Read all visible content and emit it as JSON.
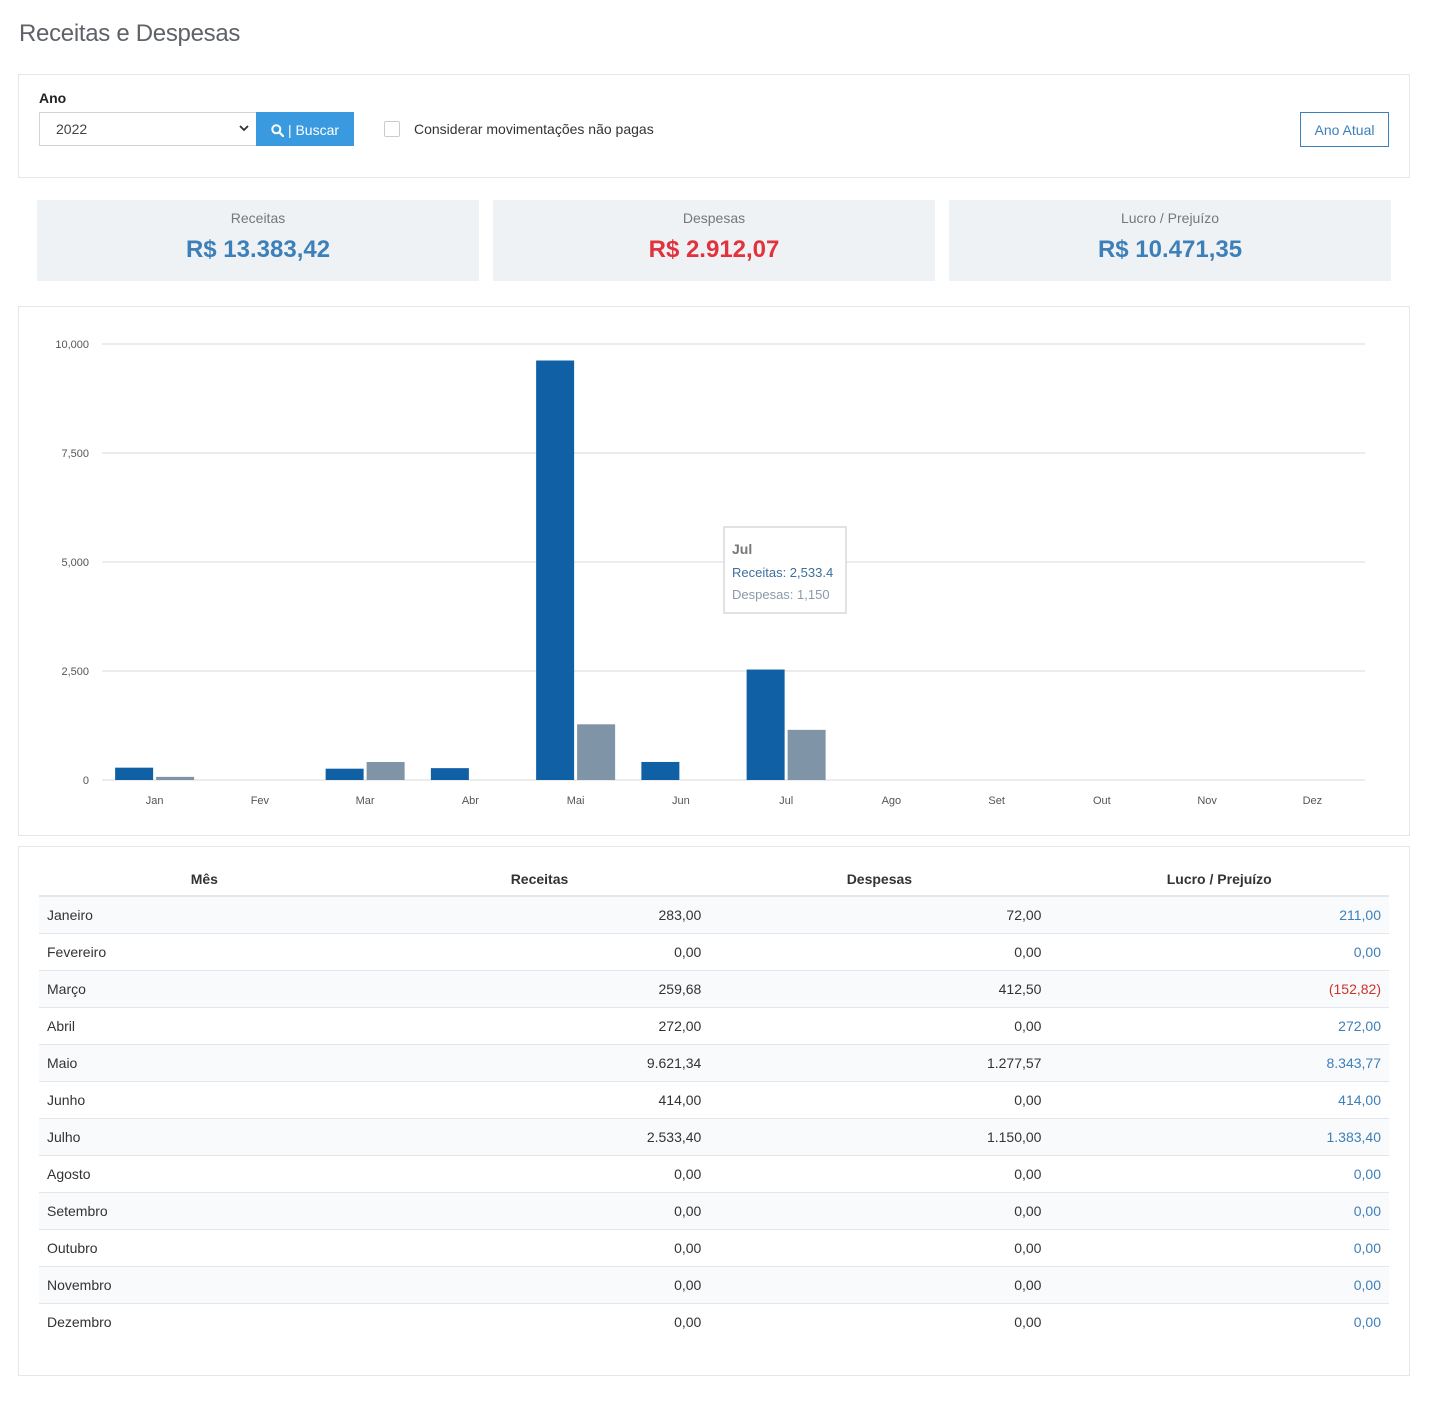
{
  "page": {
    "title": "Receitas e Despesas"
  },
  "filter": {
    "year_label": "Ano",
    "year_value": "2022",
    "search_button": "| Buscar",
    "checkbox_label": "Considerar movimentações não pagas",
    "current_year_button": "Ano Atual"
  },
  "summary": [
    {
      "label": "Receitas",
      "value": "R$ 13.383,42",
      "color": "#3d7fb8"
    },
    {
      "label": "Despesas",
      "value": "R$ 2.912,07",
      "color": "#e2323b"
    },
    {
      "label": "Lucro / Prejuízo",
      "value": "R$ 10.471,35",
      "color": "#3d7fb8"
    }
  ],
  "chart_data": {
    "type": "bar",
    "categories": [
      "Jan",
      "Fev",
      "Mar",
      "Abr",
      "Mai",
      "Jun",
      "Jul",
      "Ago",
      "Set",
      "Out",
      "Nov",
      "Dez"
    ],
    "series": [
      {
        "name": "Receitas",
        "color": "#1060a6",
        "values": [
          283,
          0,
          259.68,
          272,
          9621.34,
          414,
          2533.4,
          0,
          0,
          0,
          0,
          0
        ]
      },
      {
        "name": "Despesas",
        "color": "#8094a8",
        "values": [
          72,
          0,
          412.5,
          0,
          1277.57,
          0,
          1150,
          0,
          0,
          0,
          0,
          0
        ]
      }
    ],
    "ylim": [
      0,
      10000
    ],
    "yticks": [
      0,
      2500,
      5000,
      7500,
      10000
    ],
    "ytick_labels": [
      "0",
      "2,500",
      "5,000",
      "7,500",
      "10,000"
    ],
    "grid": true,
    "tooltip": {
      "title": "Jul",
      "lines": [
        "Receitas: 2,533.4",
        "Despesas: 1,150"
      ]
    }
  },
  "table": {
    "headers": [
      "Mês",
      "Receitas",
      "Despesas",
      "Lucro / Prejuízo"
    ],
    "rows": [
      {
        "month": "Janeiro",
        "receitas": "283,00",
        "despesas": "72,00",
        "lucro": "211,00",
        "negative": false
      },
      {
        "month": "Fevereiro",
        "receitas": "0,00",
        "despesas": "0,00",
        "lucro": "0,00",
        "negative": false
      },
      {
        "month": "Março",
        "receitas": "259,68",
        "despesas": "412,50",
        "lucro": "(152,82)",
        "negative": true
      },
      {
        "month": "Abril",
        "receitas": "272,00",
        "despesas": "0,00",
        "lucro": "272,00",
        "negative": false
      },
      {
        "month": "Maio",
        "receitas": "9.621,34",
        "despesas": "1.277,57",
        "lucro": "8.343,77",
        "negative": false
      },
      {
        "month": "Junho",
        "receitas": "414,00",
        "despesas": "0,00",
        "lucro": "414,00",
        "negative": false
      },
      {
        "month": "Julho",
        "receitas": "2.533,40",
        "despesas": "1.150,00",
        "lucro": "1.383,40",
        "negative": false
      },
      {
        "month": "Agosto",
        "receitas": "0,00",
        "despesas": "0,00",
        "lucro": "0,00",
        "negative": false
      },
      {
        "month": "Setembro",
        "receitas": "0,00",
        "despesas": "0,00",
        "lucro": "0,00",
        "negative": false
      },
      {
        "month": "Outubro",
        "receitas": "0,00",
        "despesas": "0,00",
        "lucro": "0,00",
        "negative": false
      },
      {
        "month": "Novembro",
        "receitas": "0,00",
        "despesas": "0,00",
        "lucro": "0,00",
        "negative": false
      },
      {
        "month": "Dezembro",
        "receitas": "0,00",
        "despesas": "0,00",
        "lucro": "0,00",
        "negative": false
      }
    ]
  }
}
